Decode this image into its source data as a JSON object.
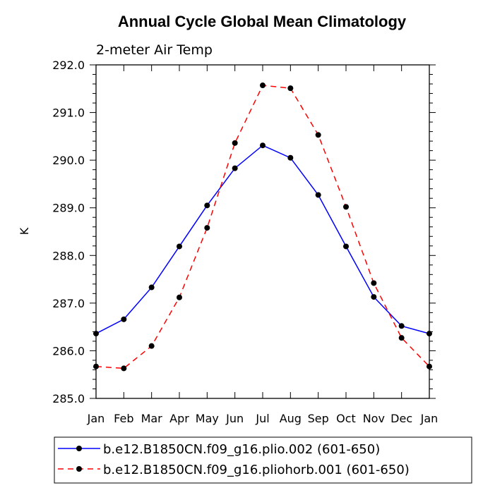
{
  "chart_data": {
    "type": "line",
    "title": "Annual Cycle Global Mean Climatology",
    "subtitle": "2-meter Air Temp",
    "xlabel": "",
    "ylabel": "K",
    "categories": [
      "Jan",
      "Feb",
      "Mar",
      "Apr",
      "May",
      "Jun",
      "Jul",
      "Aug",
      "Sep",
      "Oct",
      "Nov",
      "Dec",
      "Jan"
    ],
    "ylim": [
      285.0,
      292.0
    ],
    "yticks": [
      "285.0",
      "286.0",
      "287.0",
      "288.0",
      "289.0",
      "290.0",
      "291.0",
      "292.0"
    ],
    "grid": false,
    "legend_position": "bottom",
    "series": [
      {
        "name": "b.e12.B1850CN.f09_g16.plio.002 (601-650)",
        "color": "#0000ff",
        "line_style": "solid",
        "values": [
          286.36,
          286.66,
          287.33,
          288.19,
          289.05,
          289.83,
          290.31,
          290.05,
          289.27,
          288.19,
          287.13,
          286.52,
          286.36
        ]
      },
      {
        "name": "b.e12.B1850CN.f09_g16.pliohorb.001 (601-650)",
        "color": "#ff0000",
        "line_style": "dashed",
        "values": [
          285.67,
          285.63,
          286.1,
          287.12,
          288.58,
          290.36,
          291.57,
          291.51,
          290.53,
          289.02,
          287.42,
          286.27,
          285.67
        ]
      }
    ]
  }
}
